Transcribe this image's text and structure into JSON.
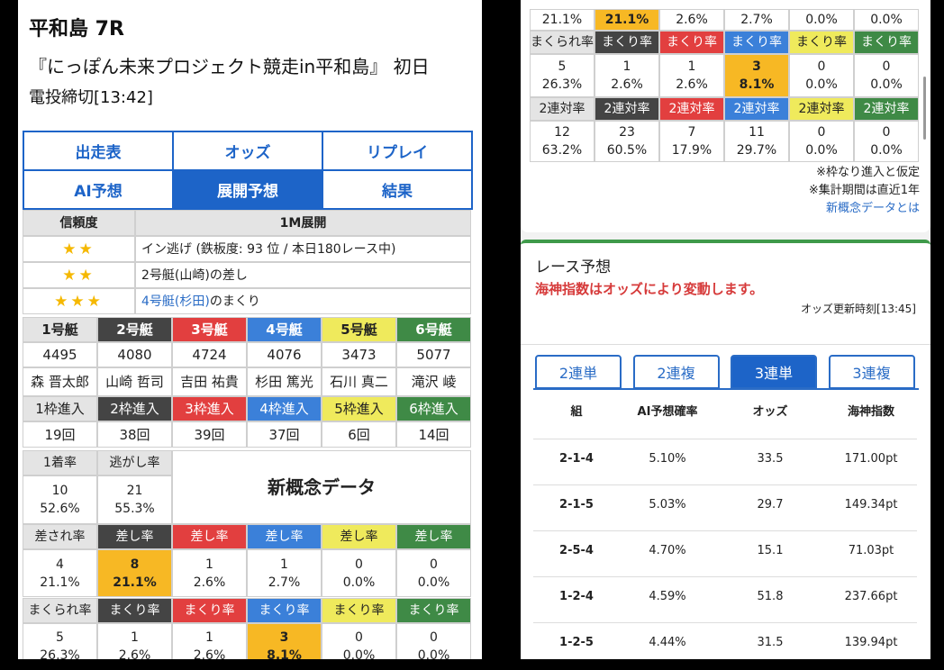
{
  "left": {
    "header": {
      "title": "平和島 7R",
      "subtitle": "『にっぽん未来プロジェクト競走in平和島』 初日",
      "deadline": "電投締切[13:42]"
    },
    "tabs": [
      "出走表",
      "オッズ",
      "リプレイ",
      "AI予想",
      "展開予想",
      "結果"
    ],
    "active_tab": 4,
    "tenkai": {
      "headers": [
        "信頼度",
        "1M展開"
      ],
      "rows": [
        {
          "stars": "★★",
          "text": "イン逃げ (鉄板度: 93 位 / 本日180レース中)"
        },
        {
          "stars": "★★",
          "text": "2号艇(山崎)の差し"
        },
        {
          "stars": "★★★",
          "link": "4号艇(杉田)",
          "text": "のまくり"
        }
      ]
    },
    "boats": {
      "labels": [
        "1号艇",
        "2号艇",
        "3号艇",
        "4号艇",
        "5号艇",
        "6号艇"
      ],
      "numbers": [
        "4495",
        "4080",
        "4724",
        "4076",
        "3473",
        "5077"
      ],
      "racers": [
        "森 晋太郎",
        "山崎 哲司",
        "吉田 祐貴",
        "杉田 篤光",
        "石川 真二",
        "滝沢 崚"
      ],
      "entry_labels": [
        "1枠進入",
        "2枠進入",
        "3枠進入",
        "4枠進入",
        "5枠進入",
        "6枠進入"
      ],
      "entry_counts": [
        "19回",
        "38回",
        "39回",
        "37回",
        "6回",
        "14回"
      ]
    },
    "stats": {
      "first_label": "1着率",
      "first_count": "10",
      "first_rate": "52.6%",
      "nige_label": "逃がし率",
      "nige_count": "21",
      "nige_rate": "55.3%",
      "title": "新概念データ"
    }
  },
  "rate_rows": {
    "sasare": {
      "labels": [
        "差され率",
        "差し率",
        "差し率",
        "差し率",
        "差し率",
        "差し率"
      ],
      "counts": [
        "4",
        "8",
        "1",
        "1",
        "0",
        "0"
      ],
      "rates": [
        "21.1%",
        "21.1%",
        "2.6%",
        "2.7%",
        "0.0%",
        "0.0%"
      ],
      "highlight": 1
    },
    "makurare": {
      "labels": [
        "まくられ率",
        "まくり率",
        "まくり率",
        "まくり率",
        "まくり率",
        "まくり率"
      ],
      "counts": [
        "5",
        "1",
        "1",
        "3",
        "0",
        "0"
      ],
      "rates": [
        "26.3%",
        "2.6%",
        "2.6%",
        "8.1%",
        "0.0%",
        "0.0%"
      ],
      "highlight": 3
    },
    "rentai": {
      "labels": [
        "2連対率",
        "2連対率",
        "2連対率",
        "2連対率",
        "2連対率",
        "2連対率"
      ],
      "counts": [
        "12",
        "23",
        "7",
        "11",
        "0",
        "0"
      ],
      "rates": [
        "63.2%",
        "60.5%",
        "17.9%",
        "29.7%",
        "0.0%",
        "0.0%"
      ]
    }
  },
  "right": {
    "notes": [
      "※枠なり進入と仮定",
      "※集計期間は直近1年"
    ],
    "link": "新概念データとは",
    "prediction": {
      "title": "レース予想",
      "notice": "海神指数はオッズにより変動します。",
      "updated": "オッズ更新時刻[13:45]",
      "tabs": [
        "2連単",
        "2連複",
        "3連単",
        "3連複"
      ],
      "active_tab": 2,
      "headers": [
        "組",
        "AI予想確率",
        "オッズ",
        "海神指数"
      ],
      "rows": [
        [
          "2-1-4",
          "5.10%",
          "33.5",
          "171.00pt"
        ],
        [
          "2-1-5",
          "5.03%",
          "29.7",
          "149.34pt"
        ],
        [
          "2-5-4",
          "4.70%",
          "15.1",
          "71.03pt"
        ],
        [
          "1-2-4",
          "4.59%",
          "51.8",
          "237.66pt"
        ],
        [
          "1-2-5",
          "4.44%",
          "31.5",
          "139.94pt"
        ]
      ]
    }
  }
}
